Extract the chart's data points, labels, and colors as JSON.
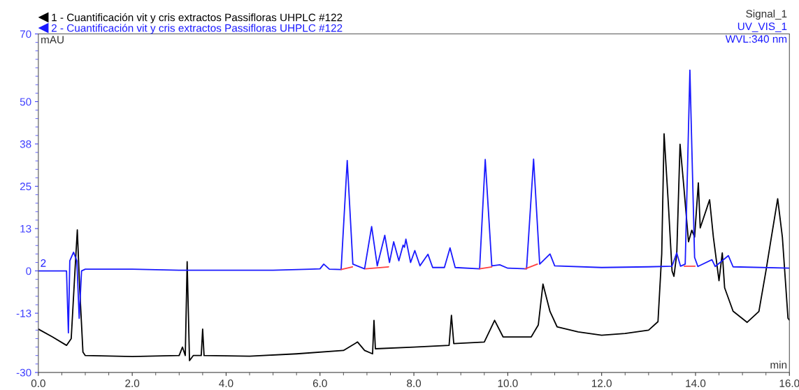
{
  "chart_data": {
    "type": "line",
    "xlabel": "min",
    "ylabel": "mAU",
    "xlim": [
      0,
      16
    ],
    "xticks": [
      {
        "value": 0,
        "label": "0.0"
      },
      {
        "value": 2,
        "label": "2.0"
      },
      {
        "value": 4,
        "label": "4.0"
      },
      {
        "value": 6,
        "label": "6.0"
      },
      {
        "value": 8,
        "label": "8.0"
      },
      {
        "value": 10,
        "label": "10.0"
      },
      {
        "value": 12,
        "label": "12.0"
      },
      {
        "value": 14,
        "label": "14.0"
      },
      {
        "value": 16,
        "label": "16.0"
      }
    ],
    "ylim": [
      -30,
      70
    ],
    "yticks": [
      -30,
      {
        "value": -12.5,
        "label": "-13"
      },
      0,
      {
        "value": 12.5,
        "label": "13"
      },
      25,
      {
        "value": 37.5,
        "label": "38"
      },
      50,
      70
    ],
    "grid": false,
    "legend": "top left",
    "annotations": [
      "Signal_1",
      "UV_VIS_1",
      "WVL:340 nm",
      "2"
    ],
    "series": [
      {
        "name": "1 - Cuantificación vit y cris extractos Passifloras UHPLC #122",
        "color": "#000000",
        "x": [
          0,
          0.3,
          0.6,
          0.7,
          0.78,
          0.83,
          0.88,
          0.95,
          1.0,
          2.0,
          3.0,
          3.07,
          3.13,
          3.17,
          3.22,
          3.3,
          3.47,
          3.5,
          3.53,
          4.5,
          5.5,
          6.5,
          6.8,
          6.95,
          7.12,
          7.15,
          7.18,
          8.0,
          8.75,
          8.8,
          8.85,
          9.5,
          9.72,
          9.9,
          10.5,
          10.65,
          10.75,
          10.9,
          11.05,
          11.5,
          12.0,
          12.5,
          13.0,
          13.2,
          13.28,
          13.33,
          13.42,
          13.5,
          13.54,
          13.6,
          13.67,
          13.75,
          13.85,
          13.92,
          13.98,
          14.06,
          14.1,
          14.3,
          14.38,
          14.5,
          14.57,
          14.62,
          14.8,
          15.1,
          15.35,
          15.5,
          15.6,
          15.75,
          15.85,
          15.97,
          16.0
        ],
        "values": [
          -17.2,
          -19.5,
          -22,
          -20,
          0,
          12.1,
          -5,
          -24,
          -25,
          -25.3,
          -25,
          -22.5,
          -25,
          2.7,
          -26.5,
          -25,
          -25,
          -17.2,
          -25,
          -25.2,
          -24.5,
          -23.5,
          -21,
          -23.5,
          -24.5,
          -14.6,
          -23,
          -22.5,
          -22,
          -13.1,
          -21.5,
          -21,
          -14.6,
          -19.5,
          -19.5,
          -16,
          -3.9,
          -12,
          -16.5,
          -18,
          -19,
          -18.5,
          -17.5,
          -15,
          5,
          40.5,
          20,
          0,
          -1.6,
          5,
          37.4,
          25,
          8.6,
          12,
          10,
          26,
          12.7,
          21,
          10,
          -2.9,
          5.3,
          -5,
          -11.9,
          -15.2,
          -12,
          0,
          8.6,
          21.3,
          10,
          -14,
          -14.5
        ]
      },
      {
        "name": "2 - Cuantificación vit y cris extractos Passifloras UHPLC #122",
        "color": "#1a1aff",
        "x": [
          0,
          0.6,
          0.64,
          0.67,
          0.75,
          0.82,
          0.87,
          0.92,
          1.0,
          2.0,
          3.0,
          5.0,
          5.8,
          6.0,
          6.08,
          6.2,
          6.45,
          6.58,
          6.7,
          6.95,
          7.1,
          7.22,
          7.38,
          7.48,
          7.57,
          7.68,
          7.77,
          7.8,
          7.83,
          7.93,
          8.02,
          8.13,
          8.3,
          8.4,
          8.65,
          8.77,
          8.88,
          9.4,
          9.52,
          9.66,
          9.83,
          10.0,
          10.4,
          10.55,
          10.68,
          10.9,
          11.0,
          12.0,
          13.0,
          13.5,
          13.6,
          13.68,
          13.78,
          13.88,
          13.98,
          14.05,
          14.35,
          14.42,
          14.7,
          14.8,
          16.0
        ],
        "values": [
          0,
          0,
          -18.3,
          3,
          5.5,
          3,
          -14,
          0,
          0.5,
          0.5,
          0.2,
          0.2,
          0.5,
          0.6,
          2,
          0.5,
          0.4,
          32.6,
          2,
          0.6,
          13.1,
          1.5,
          10.5,
          2.5,
          8.6,
          3,
          7.6,
          7,
          9.4,
          2.5,
          6,
          1.5,
          4.9,
          1,
          1,
          6.8,
          1,
          0.6,
          32.9,
          1.5,
          1.8,
          0.8,
          0.6,
          33,
          2,
          5,
          1.5,
          1,
          1.2,
          1.4,
          5.3,
          1.4,
          2,
          59.3,
          4,
          1.3,
          3.3,
          1.3,
          4.5,
          1.2,
          0.8
        ]
      },
      {
        "color": "#ff4040",
        "x": [
          6.45,
          6.69,
          6.7,
          6.97,
          7.46,
          7.47,
          9.4,
          9.66,
          9.67,
          10.37,
          10.63,
          10.64,
          13.76,
          13.99
        ],
        "values": [
          0.4,
          1.2,
          null,
          0.6,
          1.2,
          null,
          0.6,
          1.2,
          null,
          0.6,
          2.0,
          null,
          1.4,
          1.4
        ]
      }
    ]
  }
}
